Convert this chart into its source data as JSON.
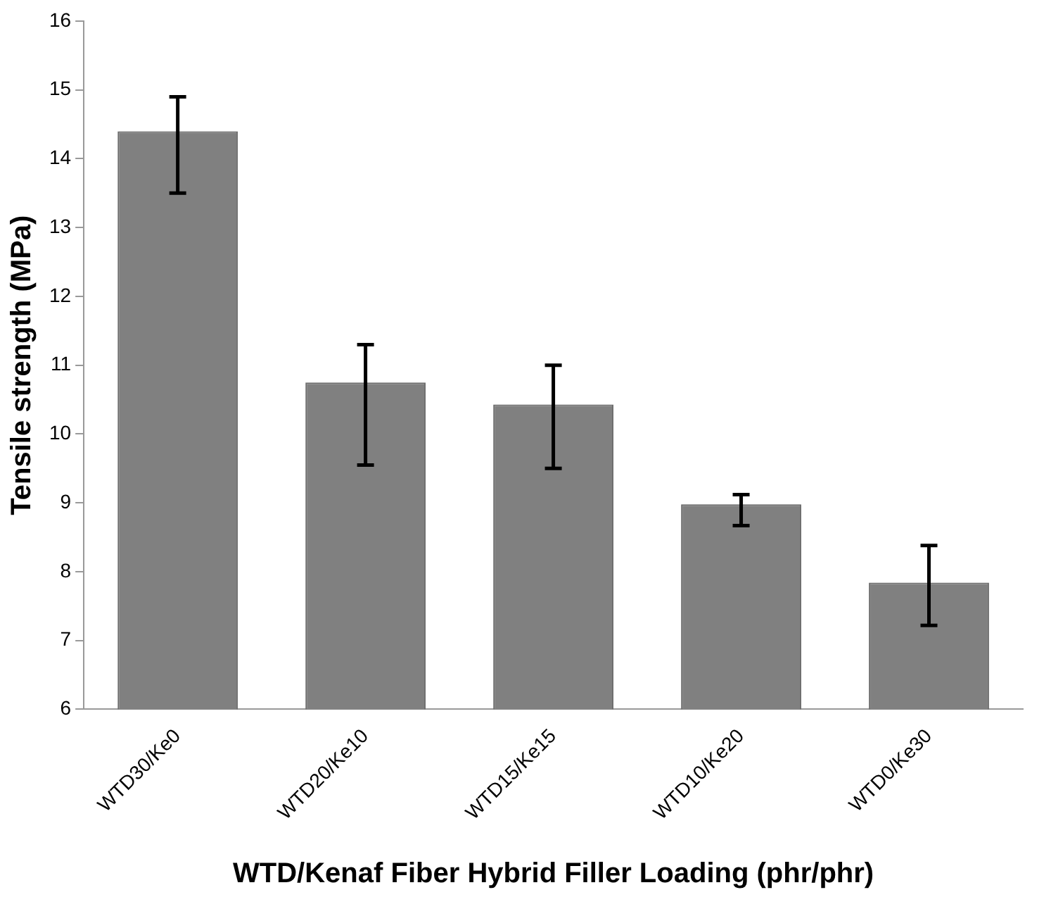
{
  "chart_data": {
    "type": "bar",
    "xlabel": "WTD/Kenaf Fiber Hybrid Filler Loading (phr/phr)",
    "ylabel": "Tensile strength (MPa)",
    "categories": [
      "WTD30/Ke0",
      "WTD20/Ke10",
      "WTD15/Ke15",
      "WTD10/Ke20",
      "WTD0/Ke30"
    ],
    "values": [
      14.4,
      10.75,
      10.43,
      8.98,
      7.84
    ],
    "errors": [
      [
        13.5,
        14.9
      ],
      [
        9.55,
        11.3
      ],
      [
        9.5,
        11.0
      ],
      [
        8.67,
        9.12
      ],
      [
        7.22,
        8.38
      ]
    ],
    "color": "#808080",
    "ylim": [
      6,
      16
    ],
    "yticks": [
      6,
      7,
      8,
      9,
      10,
      11,
      12,
      13,
      14,
      15,
      16
    ],
    "grid": false,
    "legend": false
  }
}
